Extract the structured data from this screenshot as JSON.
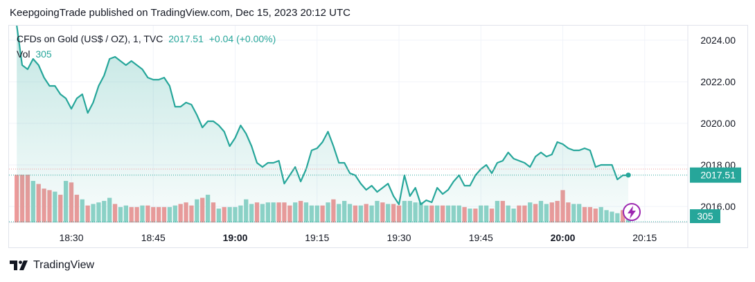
{
  "publisher_line": "KeepgoingTrade published on TradingView.com, Dec 15, 2023 20:12 UTC",
  "legend": {
    "symbol": "CFDs on Gold (US$ / OZ), 1, TVC",
    "price": "2017.51",
    "change": "+0.04 (+0.00%)",
    "vol_label": "Vol",
    "vol_value": "305"
  },
  "footer": {
    "brand": "TradingView"
  },
  "colors": {
    "line": "#26a69a",
    "up_volume": "#8fd3c8",
    "down_volume": "#ef9a9a",
    "price_tag": "#26a69a",
    "grid": "#f0f3fa"
  },
  "chart_data": {
    "type": "area",
    "title": "",
    "xlabel": "",
    "ylabel": "",
    "x_ticks": [
      {
        "label": "18:30",
        "value": 2,
        "bold": false
      },
      {
        "label": "18:45",
        "value": 17,
        "bold": false
      },
      {
        "label": "19:00",
        "value": 32,
        "bold": true
      },
      {
        "label": "19:15",
        "value": 47,
        "bold": false
      },
      {
        "label": "19:30",
        "value": 62,
        "bold": false
      },
      {
        "label": "19:45",
        "value": 77,
        "bold": false
      },
      {
        "label": "20:00",
        "value": 92,
        "bold": true
      },
      {
        "label": "20:15",
        "value": 107,
        "bold": false
      }
    ],
    "y_ticks": [
      "2024.00",
      "2022.00",
      "2020.00",
      "2018.00",
      "2016.00"
    ],
    "ylim": [
      2015.2,
      2025.2
    ],
    "last_price_label": "2017.51",
    "last_volume_label": "305",
    "series": [
      {
        "name": "CFDs on Gold (US$ / OZ)",
        "x": [
          -8,
          -7,
          -6,
          -5,
          -4,
          -3,
          -2,
          -1,
          0,
          1,
          2,
          3,
          4,
          5,
          6,
          7,
          8,
          9,
          10,
          11,
          12,
          13,
          14,
          15,
          16,
          17,
          18,
          19,
          20,
          21,
          22,
          23,
          24,
          25,
          26,
          27,
          28,
          29,
          30,
          31,
          32,
          33,
          34,
          35,
          36,
          37,
          38,
          39,
          40,
          41,
          42,
          43,
          44,
          45,
          46,
          47,
          48,
          49,
          50,
          51,
          52,
          53,
          54,
          55,
          56,
          57,
          58,
          59,
          60,
          61,
          62,
          63,
          64,
          65,
          66,
          67,
          68,
          69,
          70,
          71,
          72,
          73,
          74,
          75,
          76,
          77,
          78,
          79,
          80,
          81,
          82,
          83,
          84,
          85,
          86,
          87,
          88,
          89,
          90,
          91,
          92,
          93,
          94,
          95,
          96,
          97,
          98,
          99,
          100,
          101,
          102,
          103,
          104
        ],
        "values": [
          2024.7,
          2022.8,
          2022.6,
          2023.1,
          2022.8,
          2022.2,
          2021.8,
          2021.8,
          2021.4,
          2021.2,
          2020.7,
          2021.2,
          2021.4,
          2020.5,
          2021.0,
          2021.8,
          2022.3,
          2023.1,
          2023.2,
          2023.0,
          2022.8,
          2023.0,
          2022.8,
          2022.6,
          2022.2,
          2022.1,
          2022.1,
          2022.2,
          2021.8,
          2020.8,
          2020.8,
          2021.0,
          2020.9,
          2020.4,
          2019.8,
          2020.1,
          2020.1,
          2019.9,
          2019.6,
          2018.9,
          2019.3,
          2019.9,
          2019.5,
          2018.9,
          2018.1,
          2017.9,
          2018.1,
          2018.1,
          2018.2,
          2017.1,
          2017.5,
          2017.9,
          2017.2,
          2017.8,
          2018.7,
          2018.8,
          2019.1,
          2019.6,
          2018.9,
          2018.1,
          2018.1,
          2017.6,
          2017.5,
          2017.1,
          2016.8,
          2017.0,
          2016.7,
          2016.9,
          2017.1,
          2016.5,
          2016.1,
          2017.5,
          2016.5,
          2016.9,
          2016.1,
          2016.3,
          2016.2,
          2016.9,
          2016.6,
          2016.8,
          2017.2,
          2017.5,
          2017.0,
          2017.0,
          2017.5,
          2017.8,
          2018.0,
          2017.6,
          2018.1,
          2018.2,
          2018.6,
          2018.3,
          2018.2,
          2018.1,
          2017.9,
          2018.4,
          2018.6,
          2018.4,
          2018.5,
          2019.1,
          2019.0,
          2018.8,
          2018.7,
          2018.7,
          2018.8,
          2018.7,
          2017.9,
          2018.0,
          2018.0,
          2018.0,
          2017.3,
          2017.5,
          2017.5
        ]
      },
      {
        "name": "Vol",
        "x": [
          -8,
          -7,
          -6,
          -5,
          -4,
          -3,
          -2,
          -1,
          0,
          1,
          2,
          3,
          4,
          5,
          6,
          7,
          8,
          9,
          10,
          11,
          12,
          13,
          14,
          15,
          16,
          17,
          18,
          19,
          20,
          21,
          22,
          23,
          24,
          25,
          26,
          27,
          28,
          29,
          30,
          31,
          32,
          33,
          34,
          35,
          36,
          37,
          38,
          39,
          40,
          41,
          42,
          43,
          44,
          45,
          46,
          47,
          48,
          49,
          50,
          51,
          52,
          53,
          54,
          55,
          56,
          57,
          58,
          59,
          60,
          61,
          62,
          63,
          64,
          65,
          66,
          67,
          68,
          69,
          70,
          71,
          72,
          73,
          74,
          75,
          76,
          77,
          78,
          79,
          80,
          81,
          82,
          83,
          84,
          85,
          86,
          87,
          88,
          89,
          90,
          91,
          92,
          93,
          94,
          95,
          96,
          97,
          98,
          99,
          100,
          101,
          102,
          103,
          104
        ],
        "values": [
          1550,
          1550,
          1550,
          1350,
          1250,
          1100,
          1050,
          1000,
          900,
          1350,
          1300,
          900,
          750,
          550,
          600,
          650,
          700,
          800,
          600,
          500,
          550,
          500,
          500,
          550,
          550,
          500,
          500,
          500,
          500,
          550,
          600,
          650,
          550,
          750,
          800,
          900,
          650,
          450,
          500,
          500,
          500,
          550,
          750,
          600,
          650,
          600,
          650,
          650,
          650,
          650,
          550,
          650,
          700,
          650,
          550,
          550,
          550,
          650,
          750,
          600,
          700,
          600,
          550,
          550,
          600,
          550,
          700,
          650,
          600,
          600,
          550,
          700,
          700,
          650,
          650,
          550,
          550,
          550,
          550,
          550,
          550,
          550,
          500,
          450,
          450,
          550,
          550,
          450,
          700,
          700,
          550,
          450,
          550,
          550,
          650,
          600,
          700,
          600,
          650,
          700,
          1050,
          650,
          600,
          600,
          500,
          500,
          450,
          500,
          400,
          350,
          300,
          400,
          350
        ],
        "colors": [
          "down",
          "down",
          "down",
          "up",
          "down",
          "down",
          "down",
          "up",
          "down",
          "up",
          "down",
          "down",
          "up",
          "down",
          "up",
          "up",
          "up",
          "up",
          "down",
          "up",
          "up",
          "down",
          "down",
          "up",
          "down",
          "down",
          "down",
          "down",
          "up",
          "up",
          "down",
          "down",
          "down",
          "up",
          "down",
          "up",
          "down",
          "up",
          "down",
          "up",
          "up",
          "up",
          "up",
          "up",
          "down",
          "up",
          "up",
          "up",
          "down",
          "down",
          "down",
          "up",
          "down",
          "up",
          "up",
          "up",
          "down",
          "up",
          "down",
          "up",
          "up",
          "up",
          "down",
          "up",
          "down",
          "up",
          "up",
          "down",
          "up",
          "down",
          "down",
          "up",
          "up",
          "up",
          "up",
          "up",
          "down",
          "up",
          "down",
          "up",
          "up",
          "up",
          "down",
          "up",
          "down",
          "up",
          "up",
          "down",
          "up",
          "down",
          "up",
          "up",
          "down",
          "down",
          "up",
          "down",
          "up",
          "up",
          "down",
          "down",
          "down",
          "down",
          "up",
          "up",
          "down",
          "down",
          "down",
          "up",
          "up",
          "up",
          "up",
          "down",
          "up"
        ],
        "ylim": [
          0,
          2000
        ]
      }
    ],
    "grid": true
  }
}
